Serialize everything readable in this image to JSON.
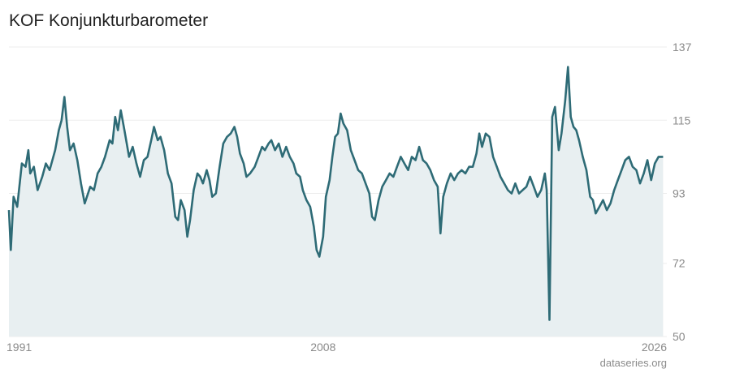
{
  "title": "KOF Konjunkturbarometer",
  "source": "dataseries.org",
  "chart_data": {
    "type": "area",
    "title": "KOF Konjunkturbarometer",
    "xlim": [
      1991,
      2026.6
    ],
    "ylim": [
      50,
      137
    ],
    "x_ticks": [
      1991,
      2008,
      2026
    ],
    "y_ticks": [
      137,
      115,
      93,
      72,
      50
    ],
    "grid": true,
    "colors": {
      "line": "#2e6b76",
      "fill": "#e8eff1",
      "grid": "#ededed"
    },
    "points": [
      [
        1991.0,
        88
      ],
      [
        1991.1,
        76
      ],
      [
        1991.25,
        92
      ],
      [
        1991.45,
        89
      ],
      [
        1991.7,
        102
      ],
      [
        1991.9,
        101
      ],
      [
        1992.05,
        106
      ],
      [
        1992.15,
        99
      ],
      [
        1992.35,
        101
      ],
      [
        1992.55,
        94
      ],
      [
        1992.8,
        98
      ],
      [
        1993.0,
        102
      ],
      [
        1993.2,
        100
      ],
      [
        1993.5,
        106
      ],
      [
        1993.7,
        112
      ],
      [
        1993.85,
        115
      ],
      [
        1994.0,
        122
      ],
      [
        1994.15,
        113
      ],
      [
        1994.3,
        106
      ],
      [
        1994.5,
        108
      ],
      [
        1994.7,
        103
      ],
      [
        1994.9,
        96
      ],
      [
        1995.1,
        90
      ],
      [
        1995.4,
        95
      ],
      [
        1995.6,
        94
      ],
      [
        1995.8,
        99
      ],
      [
        1996.0,
        101
      ],
      [
        1996.2,
        104
      ],
      [
        1996.45,
        109
      ],
      [
        1996.6,
        108
      ],
      [
        1996.75,
        116
      ],
      [
        1996.9,
        112
      ],
      [
        1997.05,
        118
      ],
      [
        1997.25,
        112
      ],
      [
        1997.5,
        104
      ],
      [
        1997.7,
        107
      ],
      [
        1997.9,
        102
      ],
      [
        1998.1,
        98
      ],
      [
        1998.3,
        103
      ],
      [
        1998.5,
        104
      ],
      [
        1998.7,
        109
      ],
      [
        1998.85,
        113
      ],
      [
        1999.05,
        109
      ],
      [
        1999.2,
        110
      ],
      [
        1999.4,
        106
      ],
      [
        1999.6,
        99
      ],
      [
        1999.8,
        96
      ],
      [
        2000.0,
        86
      ],
      [
        2000.15,
        85
      ],
      [
        2000.3,
        91
      ],
      [
        2000.5,
        88
      ],
      [
        2000.65,
        80
      ],
      [
        2000.8,
        85
      ],
      [
        2001.0,
        94
      ],
      [
        2001.2,
        99
      ],
      [
        2001.35,
        98
      ],
      [
        2001.5,
        96
      ],
      [
        2001.7,
        100
      ],
      [
        2001.85,
        97
      ],
      [
        2002.0,
        92
      ],
      [
        2002.2,
        93
      ],
      [
        2002.4,
        101
      ],
      [
        2002.6,
        108
      ],
      [
        2002.8,
        110
      ],
      [
        2003.0,
        111
      ],
      [
        2003.2,
        113
      ],
      [
        2003.35,
        110
      ],
      [
        2003.5,
        105
      ],
      [
        2003.7,
        102
      ],
      [
        2003.85,
        98
      ],
      [
        2004.05,
        99
      ],
      [
        2004.3,
        101
      ],
      [
        2004.5,
        104
      ],
      [
        2004.7,
        107
      ],
      [
        2004.85,
        106
      ],
      [
        2005.05,
        108
      ],
      [
        2005.2,
        109
      ],
      [
        2005.4,
        106
      ],
      [
        2005.6,
        108
      ],
      [
        2005.8,
        104
      ],
      [
        2006.0,
        107
      ],
      [
        2006.2,
        104
      ],
      [
        2006.4,
        102
      ],
      [
        2006.55,
        99
      ],
      [
        2006.75,
        98
      ],
      [
        2006.9,
        94
      ],
      [
        2007.1,
        91
      ],
      [
        2007.3,
        89
      ],
      [
        2007.5,
        83
      ],
      [
        2007.65,
        76
      ],
      [
        2007.8,
        74
      ],
      [
        2008.0,
        80
      ],
      [
        2008.15,
        92
      ],
      [
        2008.35,
        97
      ],
      [
        2008.5,
        104
      ],
      [
        2008.65,
        110
      ],
      [
        2008.8,
        111
      ],
      [
        2008.95,
        117
      ],
      [
        2009.1,
        114
      ],
      [
        2009.3,
        112
      ],
      [
        2009.5,
        106
      ],
      [
        2009.7,
        103
      ],
      [
        2009.9,
        100
      ],
      [
        2010.1,
        99
      ],
      [
        2010.3,
        96
      ],
      [
        2010.5,
        93
      ],
      [
        2010.65,
        86
      ],
      [
        2010.8,
        85
      ],
      [
        2011.0,
        91
      ],
      [
        2011.2,
        95
      ],
      [
        2011.4,
        97
      ],
      [
        2011.6,
        99
      ],
      [
        2011.8,
        98
      ],
      [
        2012.0,
        101
      ],
      [
        2012.2,
        104
      ],
      [
        2012.4,
        102
      ],
      [
        2012.6,
        100
      ],
      [
        2012.8,
        104
      ],
      [
        2013.0,
        103
      ],
      [
        2013.2,
        107
      ],
      [
        2013.4,
        103
      ],
      [
        2013.6,
        102
      ],
      [
        2013.8,
        100
      ],
      [
        2014.0,
        97
      ],
      [
        2014.2,
        95
      ],
      [
        2014.35,
        81
      ],
      [
        2014.5,
        92
      ],
      [
        2014.7,
        96
      ],
      [
        2014.9,
        99
      ],
      [
        2015.1,
        97
      ],
      [
        2015.3,
        99
      ],
      [
        2015.5,
        100
      ],
      [
        2015.7,
        99
      ],
      [
        2015.9,
        101
      ],
      [
        2016.1,
        101
      ],
      [
        2016.3,
        105
      ],
      [
        2016.45,
        111
      ],
      [
        2016.6,
        107
      ],
      [
        2016.8,
        111
      ],
      [
        2017.0,
        110
      ],
      [
        2017.2,
        104
      ],
      [
        2017.4,
        101
      ],
      [
        2017.6,
        98
      ],
      [
        2017.8,
        96
      ],
      [
        2018.0,
        94
      ],
      [
        2018.2,
        93
      ],
      [
        2018.4,
        96
      ],
      [
        2018.6,
        93
      ],
      [
        2018.8,
        94
      ],
      [
        2019.0,
        95
      ],
      [
        2019.2,
        98
      ],
      [
        2019.4,
        95
      ],
      [
        2019.6,
        92
      ],
      [
        2019.8,
        94
      ],
      [
        2020.0,
        99
      ],
      [
        2020.1,
        94
      ],
      [
        2020.25,
        55
      ],
      [
        2020.4,
        116
      ],
      [
        2020.55,
        119
      ],
      [
        2020.75,
        106
      ],
      [
        2020.9,
        111
      ],
      [
        2021.1,
        121
      ],
      [
        2021.25,
        131
      ],
      [
        2021.4,
        116
      ],
      [
        2021.55,
        113
      ],
      [
        2021.7,
        112
      ],
      [
        2021.85,
        109
      ],
      [
        2022.05,
        104
      ],
      [
        2022.25,
        100
      ],
      [
        2022.45,
        92
      ],
      [
        2022.6,
        91
      ],
      [
        2022.75,
        87
      ],
      [
        2022.95,
        89
      ],
      [
        2023.15,
        91
      ],
      [
        2023.35,
        88
      ],
      [
        2023.55,
        90
      ],
      [
        2023.75,
        94
      ],
      [
        2023.95,
        97
      ],
      [
        2024.15,
        100
      ],
      [
        2024.35,
        103
      ],
      [
        2024.55,
        104
      ],
      [
        2024.75,
        101
      ],
      [
        2024.95,
        100
      ],
      [
        2025.15,
        96
      ],
      [
        2025.35,
        99
      ],
      [
        2025.55,
        103
      ],
      [
        2025.75,
        97
      ],
      [
        2025.95,
        102
      ],
      [
        2026.15,
        104
      ],
      [
        2026.4,
        104
      ]
    ]
  }
}
